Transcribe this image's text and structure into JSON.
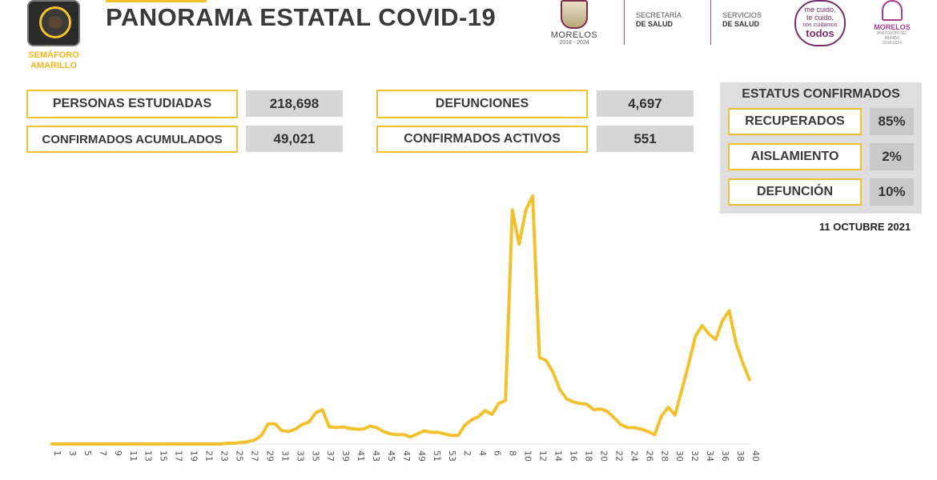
{
  "header": {
    "semaforo_label": "SEMÁFORO AMARILLO",
    "title": "PANORAMA ESTATAL COVID-19"
  },
  "logos": {
    "morelos_name": "MORELOS",
    "morelos_years": "2018 - 2024",
    "secretaria": "SECRETARÍA",
    "secretaria_sub": "DE SALUD",
    "servicios": "SERVICIOS",
    "servicios_sub": "DE SALUD",
    "todos_line1": "me cuido,",
    "todos_line2": "te cuido,",
    "todos_line3": "nos cuidamos",
    "todos_big": "todos",
    "morelos2_name": "MORELOS",
    "morelos2_sub": "ANFITRIÓN DEL MUNDO",
    "morelos2_years": "2018-2024"
  },
  "kpis": {
    "personas_label": "PERSONAS ESTUDIADAS",
    "personas_value": "218,698",
    "confirmados_label": "CONFIRMADOS ACUMULADOS",
    "confirmados_value": "49,021",
    "defunciones_label": "DEFUNCIONES",
    "defunciones_value": "4,697",
    "activos_label": "CONFIRMADOS ACTIVOS",
    "activos_value": "551"
  },
  "status": {
    "title": "ESTATUS CONFIRMADOS",
    "recuperados_label": "RECUPERADOS",
    "recuperados_value": "85%",
    "aislamiento_label": "AISLAMIENTO",
    "aislamiento_value": "2%",
    "defuncion_label": "DEFUNCIÓN",
    "defuncion_value": "10%"
  },
  "date": "11 OCTUBRE 2021",
  "colors": {
    "accent": "#f2c12e",
    "text": "#3a3a3a",
    "panel": "#dedede",
    "value_bg": "#d6d6d6"
  },
  "chart_data": {
    "type": "line",
    "title": "",
    "xlabel": "",
    "ylabel": "",
    "grid": false,
    "legend": "none",
    "x_tick_labels": [
      "1",
      "3",
      "5",
      "7",
      "9",
      "11",
      "13",
      "15",
      "17",
      "19",
      "21",
      "23",
      "25",
      "27",
      "29",
      "31",
      "33",
      "35",
      "37",
      "39",
      "41",
      "43",
      "45",
      "47",
      "49",
      "51",
      "53",
      "2",
      "4",
      "6",
      "8",
      "10",
      "12",
      "14",
      "16",
      "18",
      "20",
      "22",
      "24",
      "26",
      "28",
      "30",
      "32",
      "34",
      "36",
      "38",
      "40"
    ],
    "series": [
      {
        "name": "",
        "color": "#f2c12e",
        "values": [
          0,
          0,
          0,
          0,
          0,
          0,
          0,
          0,
          0,
          0,
          0,
          0,
          0,
          0,
          0,
          0,
          0,
          0,
          0,
          0,
          0,
          0,
          0,
          0,
          0,
          0,
          1,
          1,
          2,
          3,
          5,
          11,
          26,
          26,
          17,
          16,
          19,
          25,
          28,
          40,
          44,
          22,
          21,
          22,
          20,
          19,
          19,
          23,
          21,
          16,
          13,
          12,
          12,
          9,
          13,
          17,
          15,
          15,
          13,
          11,
          11,
          24,
          31,
          35,
          43,
          38,
          52,
          56,
          300,
          256,
          300,
          318,
          111,
          107,
          92,
          70,
          58,
          54,
          52,
          51,
          44,
          45,
          42,
          34,
          25,
          21,
          21,
          19,
          16,
          12,
          36,
          47,
          37,
          69,
          102,
          138,
          152,
          141,
          134,
          158,
          171,
          129,
          104,
          82
        ]
      }
    ]
  }
}
